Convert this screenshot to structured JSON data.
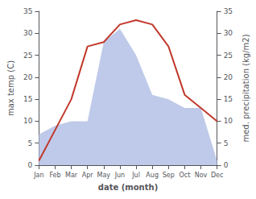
{
  "chart_data": {
    "type": "line",
    "xlabel": "date (month)",
    "ylabel": "max temp (C)",
    "y2label": "med. precipitation (kg/m2)",
    "categories": [
      "Jan",
      "Feb",
      "Mar",
      "Apr",
      "May",
      "Jun",
      "Jul",
      "Aug",
      "Sep",
      "Oct",
      "Nov",
      "Dec"
    ],
    "series": [
      {
        "type": "area",
        "color": "#b8c4e8",
        "values": [
          7,
          9,
          10,
          10,
          28,
          31,
          25,
          16,
          15,
          13,
          13,
          1
        ]
      },
      {
        "type": "line",
        "color": "#c0392b",
        "axis": "y2",
        "values": [
          1,
          8,
          15,
          27,
          28,
          32,
          33,
          32,
          27,
          16,
          13,
          10
        ]
      }
    ],
    "ylim": [
      0,
      35
    ],
    "yticks": [
      0,
      5,
      10,
      15,
      20,
      25,
      30,
      35
    ],
    "y2lim": [
      0,
      35
    ],
    "y2ticks": [
      0,
      5,
      10,
      15,
      20,
      25,
      30,
      35
    ],
    "grid": false
  }
}
